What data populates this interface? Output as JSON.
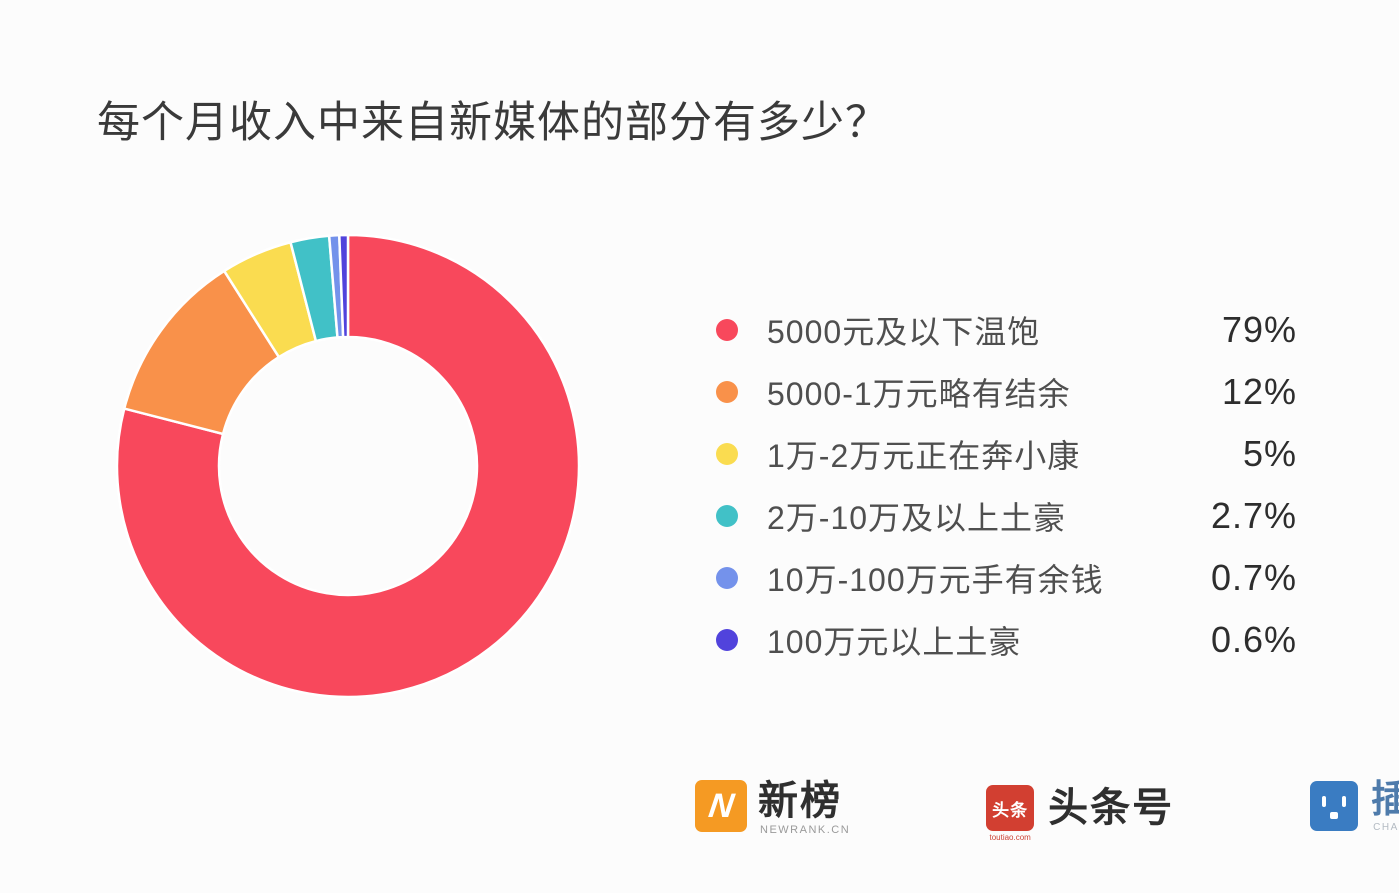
{
  "page": {
    "background_color": "#fcfcfc"
  },
  "title": "每个月收入中来自新媒体的部分有多少？",
  "chart_data": {
    "type": "pie",
    "subtype": "donut",
    "title": "每个月收入中来自新媒体的部分有多少？",
    "start_angle_deg": 0,
    "direction": "clockwise",
    "legend_position": "right",
    "unit": "%",
    "categories": [
      "5000元及以下温饱",
      "5000-1万元略有结余",
      "1万-2万元正在奔小康",
      "2万-10万及以上土豪",
      "10万-100万元手有余钱",
      "100万元以上土豪"
    ],
    "values": [
      79,
      12,
      5,
      2.7,
      0.7,
      0.6
    ],
    "slices": [
      {
        "label": "5000元及以下温饱",
        "value": 79,
        "display": "79%",
        "color": "#f8485c"
      },
      {
        "label": "5000-1万元略有结余",
        "value": 12,
        "display": "12%",
        "color": "#f9914a"
      },
      {
        "label": "1万-2万元正在奔小康",
        "value": 5,
        "display": "5%",
        "color": "#fadc50"
      },
      {
        "label": "2万-10万及以上土豪",
        "value": 2.7,
        "display": "2.7%",
        "color": "#41c1c7"
      },
      {
        "label": "10万-100万元手有余钱",
        "value": 0.7,
        "display": "0.7%",
        "color": "#7492eb"
      },
      {
        "label": "100万元以上土豪",
        "value": 0.6,
        "display": "0.6%",
        "color": "#5143dc"
      }
    ]
  },
  "footer": {
    "newrank": {
      "name": "新榜",
      "subtext": "NEWRANK.CN",
      "icon_letter": "N",
      "brand_color": "#f59a23"
    },
    "toutiao": {
      "name": "头条号",
      "badge_text": "头条",
      "subtext": "toutiao.com",
      "brand_color": "#d23f31"
    },
    "chazuo": {
      "name": "插坐学院",
      "subtext": "CHAZUO.CN",
      "brand_color": "#3a7cc2"
    }
  }
}
